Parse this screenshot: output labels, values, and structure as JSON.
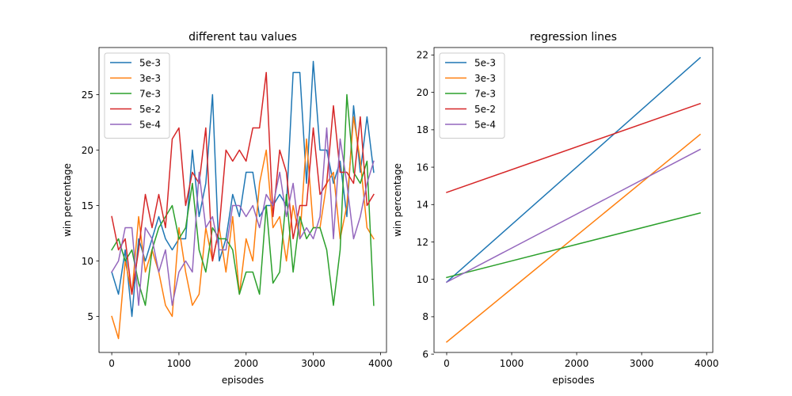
{
  "colors": {
    "5e-3": "#1f77b4",
    "3e-3": "#ff7f0e",
    "7e-3": "#2ca02c",
    "5e-2": "#d62728",
    "5e-4": "#9467bd"
  },
  "chart_data": [
    {
      "type": "line",
      "title": "different tau values",
      "xlabel": "episodes",
      "ylabel": "win percentage",
      "xlim": [
        -190,
        4090
      ],
      "ylim": [
        1.75,
        29.25
      ],
      "xticks": [
        0,
        1000,
        2000,
        3000,
        4000
      ],
      "yticks": [
        5,
        10,
        15,
        20,
        25
      ],
      "grid": false,
      "legend_position": "top-left",
      "x": [
        0,
        100,
        200,
        300,
        400,
        500,
        600,
        700,
        800,
        900,
        1000,
        1100,
        1200,
        1300,
        1400,
        1500,
        1600,
        1700,
        1800,
        1900,
        2000,
        2100,
        2200,
        2300,
        2400,
        2500,
        2600,
        2700,
        2800,
        2900,
        3000,
        3100,
        3200,
        3300,
        3400,
        3500,
        3600,
        3700,
        3800,
        3900
      ],
      "series": [
        {
          "name": "5e-3",
          "values": [
            9,
            7,
            11,
            5,
            12,
            10,
            12,
            14,
            12,
            11,
            12,
            12,
            20,
            14,
            17,
            25,
            10,
            12,
            16,
            14,
            18,
            18,
            14,
            15,
            15,
            16,
            15,
            27,
            27,
            17,
            28,
            20,
            20,
            17,
            19,
            14,
            24,
            18,
            23,
            18
          ]
        },
        {
          "name": "3e-3",
          "values": [
            5,
            3,
            10,
            7,
            14,
            9,
            11,
            9,
            6,
            5,
            13,
            9,
            6,
            7,
            13,
            10,
            13,
            9,
            14,
            7,
            12,
            10,
            17,
            20,
            13,
            14,
            10,
            15,
            12,
            21,
            13,
            13,
            17,
            18,
            12,
            15,
            23,
            19,
            13,
            12
          ]
        },
        {
          "name": "7e-3",
          "values": [
            11,
            12,
            10,
            11,
            8,
            6,
            11,
            13,
            14,
            15,
            12,
            13,
            17,
            11,
            9,
            13,
            12,
            12,
            11,
            7,
            9,
            9,
            7,
            15,
            8,
            9,
            16,
            9,
            14,
            12,
            13,
            13,
            11,
            6,
            11,
            25,
            18,
            17,
            19,
            6
          ]
        },
        {
          "name": "5e-2",
          "values": [
            14,
            11,
            12,
            7,
            11,
            16,
            13,
            16,
            13,
            21,
            22,
            15,
            18,
            17,
            22,
            10,
            13,
            20,
            19,
            20,
            19,
            22,
            22,
            27,
            14,
            20,
            18,
            12,
            15,
            15,
            22,
            16,
            17,
            24,
            18,
            18,
            17,
            23,
            15,
            16
          ]
        },
        {
          "name": "5e-4",
          "values": [
            9,
            10,
            13,
            13,
            6,
            13,
            12,
            9,
            11,
            6,
            9,
            10,
            9,
            18,
            13,
            14,
            11,
            11,
            15,
            15,
            14,
            15,
            13,
            16,
            15,
            18,
            14,
            17,
            12,
            13,
            12,
            14,
            22,
            12,
            21,
            17,
            12,
            14,
            17,
            19
          ]
        }
      ]
    },
    {
      "type": "line",
      "title": "regression lines",
      "xlabel": "episodes",
      "ylabel": "win percentage",
      "xlim": [
        -195,
        4095
      ],
      "ylim": [
        6.09,
        22.4
      ],
      "xticks": [
        0,
        1000,
        2000,
        3000,
        4000
      ],
      "yticks": [
        6,
        8,
        10,
        12,
        14,
        16,
        18,
        20,
        22
      ],
      "grid": false,
      "legend_position": "top-left",
      "x": [
        0,
        3900
      ],
      "series": [
        {
          "name": "5e-3",
          "values": [
            9.85,
            21.85
          ]
        },
        {
          "name": "3e-3",
          "values": [
            6.65,
            17.75
          ]
        },
        {
          "name": "7e-3",
          "values": [
            10.1,
            13.55
          ]
        },
        {
          "name": "5e-2",
          "values": [
            14.65,
            19.4
          ]
        },
        {
          "name": "5e-4",
          "values": [
            9.85,
            16.95
          ]
        }
      ]
    }
  ]
}
